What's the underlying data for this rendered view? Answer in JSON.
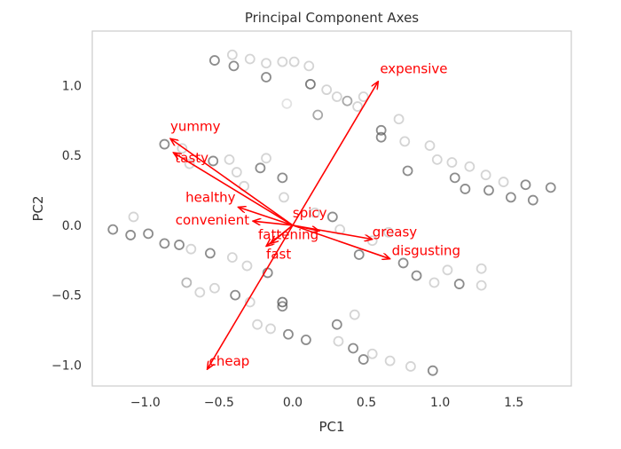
{
  "chart_data": {
    "type": "scatter",
    "title": "Principal Component Axes",
    "xlabel": "PC1",
    "ylabel": "PC2",
    "xlim": [
      -1.36,
      1.89
    ],
    "ylim": [
      -1.15,
      1.39
    ],
    "grid": false,
    "xticks": [
      "−1.0",
      "−0.5",
      "0.0",
      "0.5",
      "1.0",
      "1.5"
    ],
    "xtick_values": [
      -1.0,
      -0.5,
      0.0,
      0.5,
      1.0,
      1.5
    ],
    "yticks": [
      "1.0",
      "0.5",
      "0.0",
      "−0.5",
      "−1.0"
    ],
    "ytick_values": [
      1.0,
      0.5,
      0.0,
      -0.5,
      -1.0
    ],
    "point_color": "#555555",
    "arrow_color": "#ff0000",
    "points": [
      [
        -0.53,
        1.18,
        0.8
      ],
      [
        -0.41,
        1.22,
        0.3
      ],
      [
        -0.4,
        1.14,
        0.8
      ],
      [
        -0.29,
        1.19,
        0.3
      ],
      [
        -0.18,
        1.06,
        0.8
      ],
      [
        -0.18,
        1.16,
        0.3
      ],
      [
        -0.07,
        1.17,
        0.3
      ],
      [
        0.01,
        1.17,
        0.3
      ],
      [
        0.11,
        1.14,
        0.3
      ],
      [
        0.12,
        1.01,
        0.9
      ],
      [
        -0.04,
        0.87,
        0.2
      ],
      [
        0.23,
        0.97,
        0.3
      ],
      [
        0.17,
        0.79,
        0.6
      ],
      [
        0.3,
        0.92,
        0.3
      ],
      [
        0.37,
        0.89,
        0.6
      ],
      [
        0.44,
        0.85,
        0.3
      ],
      [
        0.48,
        0.92,
        0.3
      ],
      [
        0.6,
        0.68,
        0.8
      ],
      [
        0.6,
        0.63,
        0.8
      ],
      [
        0.72,
        0.76,
        0.3
      ],
      [
        0.76,
        0.6,
        0.3
      ],
      [
        0.78,
        0.39,
        0.8
      ],
      [
        0.93,
        0.57,
        0.3
      ],
      [
        0.98,
        0.47,
        0.3
      ],
      [
        1.08,
        0.45,
        0.3
      ],
      [
        1.1,
        0.34,
        0.8
      ],
      [
        1.17,
        0.26,
        0.8
      ],
      [
        1.2,
        0.42,
        0.3
      ],
      [
        1.31,
        0.36,
        0.3
      ],
      [
        1.33,
        0.25,
        0.8
      ],
      [
        1.43,
        0.31,
        0.3
      ],
      [
        1.48,
        0.2,
        0.8
      ],
      [
        1.58,
        0.29,
        0.8
      ],
      [
        1.63,
        0.18,
        0.8
      ],
      [
        1.75,
        0.27,
        0.8
      ],
      [
        -0.87,
        0.58,
        0.8
      ],
      [
        -0.75,
        0.55,
        0.3
      ],
      [
        -0.7,
        0.44,
        0.3
      ],
      [
        -0.54,
        0.46,
        0.8
      ],
      [
        -0.43,
        0.47,
        0.3
      ],
      [
        -0.38,
        0.38,
        0.3
      ],
      [
        -0.22,
        0.41,
        0.8
      ],
      [
        -0.07,
        0.34,
        0.8
      ],
      [
        -0.06,
        0.2,
        0.3
      ],
      [
        -0.18,
        0.48,
        0.3
      ],
      [
        -0.33,
        0.28,
        0.3
      ],
      [
        -1.22,
        -0.03,
        0.8
      ],
      [
        -1.1,
        -0.07,
        0.8
      ],
      [
        -1.08,
        0.06,
        0.3
      ],
      [
        -0.98,
        -0.06,
        0.8
      ],
      [
        -0.87,
        -0.13,
        0.8
      ],
      [
        -0.77,
        -0.14,
        0.8
      ],
      [
        -0.69,
        -0.17,
        0.3
      ],
      [
        -0.56,
        -0.2,
        0.8
      ],
      [
        -0.41,
        -0.23,
        0.3
      ],
      [
        -0.31,
        -0.29,
        0.3
      ],
      [
        -0.17,
        -0.34,
        0.8
      ],
      [
        -0.72,
        -0.41,
        0.5
      ],
      [
        -0.63,
        -0.48,
        0.3
      ],
      [
        -0.53,
        -0.45,
        0.3
      ],
      [
        -0.39,
        -0.5,
        0.8
      ],
      [
        -0.29,
        -0.55,
        0.3
      ],
      [
        -0.07,
        -0.55,
        0.9
      ],
      [
        -0.07,
        -0.58,
        0.8
      ],
      [
        -0.24,
        -0.71,
        0.3
      ],
      [
        -0.15,
        -0.74,
        0.3
      ],
      [
        -0.03,
        -0.78,
        0.8
      ],
      [
        0.09,
        -0.82,
        0.8
      ],
      [
        0.3,
        -0.71,
        0.8
      ],
      [
        0.31,
        -0.83,
        0.3
      ],
      [
        0.41,
        -0.88,
        0.8
      ],
      [
        0.48,
        -0.96,
        0.8
      ],
      [
        0.54,
        -0.92,
        0.3
      ],
      [
        0.66,
        -0.97,
        0.3
      ],
      [
        0.8,
        -1.01,
        0.3
      ],
      [
        0.95,
        -1.04,
        0.8
      ],
      [
        0.42,
        -0.64,
        0.3
      ],
      [
        0.15,
        0.09,
        0.3
      ],
      [
        0.27,
        0.06,
        0.8
      ],
      [
        0.32,
        -0.03,
        0.3
      ],
      [
        0.45,
        -0.21,
        0.8
      ],
      [
        0.54,
        -0.11,
        0.3
      ],
      [
        0.65,
        -0.05,
        0.3
      ],
      [
        0.75,
        -0.27,
        0.8
      ],
      [
        0.84,
        -0.36,
        0.8
      ],
      [
        0.96,
        -0.41,
        0.3
      ],
      [
        1.05,
        -0.32,
        0.3
      ],
      [
        1.13,
        -0.42,
        0.8
      ],
      [
        1.28,
        -0.43,
        0.3
      ],
      [
        1.28,
        -0.31,
        0.3
      ]
    ],
    "loadings": [
      {
        "name": "expensive",
        "x": 0.58,
        "y": 1.03
      },
      {
        "name": "yummy",
        "x": -0.83,
        "y": 0.62
      },
      {
        "name": "tasty",
        "x": -0.81,
        "y": 0.52
      },
      {
        "name": "healthy",
        "x": -0.37,
        "y": 0.13
      },
      {
        "name": "convenient",
        "x": -0.27,
        "y": 0.03
      },
      {
        "name": "spicy",
        "x": 0.18,
        "y": -0.04
      },
      {
        "name": "greasy",
        "x": 0.54,
        "y": -0.1
      },
      {
        "name": "disgusting",
        "x": 0.66,
        "y": -0.24
      },
      {
        "name": "fattening",
        "x": -0.15,
        "y": -0.13
      },
      {
        "name": "fast",
        "x": -0.18,
        "y": -0.15
      },
      {
        "name": "cheap",
        "x": -0.58,
        "y": -1.03
      }
    ]
  }
}
